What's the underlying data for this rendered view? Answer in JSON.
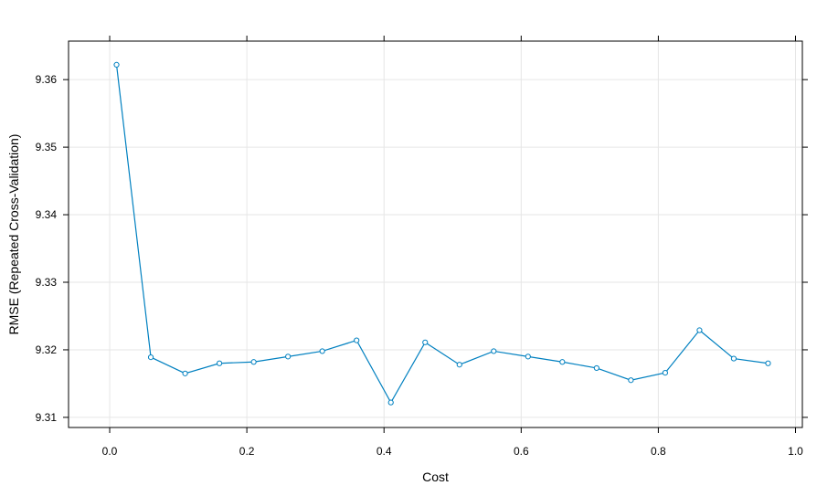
{
  "chart_data": {
    "type": "line",
    "title": "",
    "xlabel": "Cost",
    "ylabel": "RMSE (Repeated Cross-Validation)",
    "xlim": [
      -0.06,
      1.01
    ],
    "ylim": [
      9.3085,
      9.3657
    ],
    "x_ticks": [
      0.0,
      0.2,
      0.4,
      0.6,
      0.8,
      1.0
    ],
    "x_tick_labels": [
      "0.0",
      "0.2",
      "0.4",
      "0.6",
      "0.8",
      "1.0"
    ],
    "y_ticks": [
      9.31,
      9.32,
      9.33,
      9.34,
      9.35,
      9.36
    ],
    "y_tick_labels": [
      "9.31",
      "9.32",
      "9.33",
      "9.34",
      "9.35",
      "9.36"
    ],
    "grid": true,
    "series": [
      {
        "color": "#0080c0",
        "marker": "circle-open",
        "x": [
          0.01,
          0.06,
          0.11,
          0.16,
          0.21,
          0.26,
          0.31,
          0.36,
          0.41,
          0.46,
          0.51,
          0.56,
          0.61,
          0.66,
          0.71,
          0.76,
          0.81,
          0.86,
          0.91,
          0.96
        ],
        "y": [
          9.3622,
          9.3189,
          9.3165,
          9.318,
          9.3182,
          9.319,
          9.3198,
          9.3214,
          9.3122,
          9.3211,
          9.3178,
          9.3198,
          9.319,
          9.3182,
          9.3173,
          9.3155,
          9.3166,
          9.3229,
          9.3187,
          9.318
        ]
      }
    ]
  }
}
